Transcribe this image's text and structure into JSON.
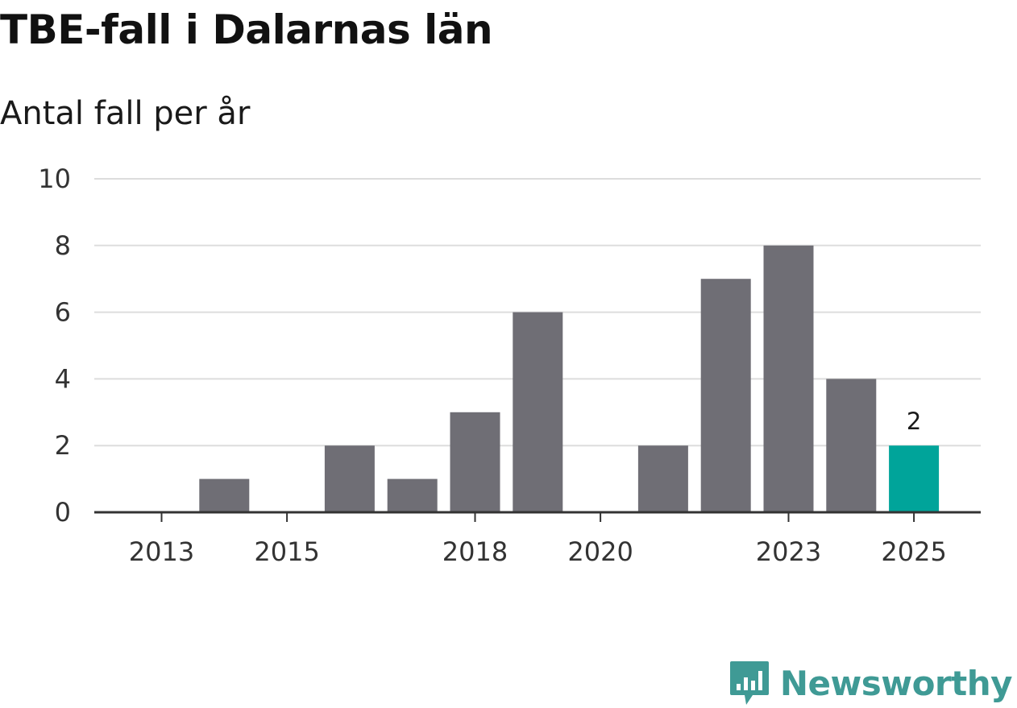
{
  "chart_data": {
    "type": "bar",
    "title": "TBE-fall i Dalarnas län",
    "subtitle": "Antal fall per år",
    "xlabel": "",
    "ylabel": "",
    "ylim": [
      0,
      10
    ],
    "yticks": [
      0,
      2,
      4,
      6,
      8,
      10
    ],
    "categories": [
      "2013",
      "2014",
      "2015",
      "2016",
      "2017",
      "2018",
      "2019",
      "2020",
      "2021",
      "2022",
      "2023",
      "2024",
      "2025"
    ],
    "values": [
      0,
      1,
      0,
      2,
      1,
      3,
      6,
      0,
      2,
      7,
      8,
      4,
      2
    ],
    "xtick_labels": [
      "2013",
      "2015",
      "2018",
      "2020",
      "2023",
      "2025"
    ],
    "highlight_category": "2025",
    "highlight_label": "2",
    "grid": true,
    "colors": {
      "bar": "#6f6e75",
      "highlight": "#00a49a",
      "grid": "#dddddd",
      "axis": "#333333"
    }
  },
  "brand": {
    "name": "Newsworthy",
    "icon": "newsworthy-logo-icon",
    "color": "#3f9a95"
  }
}
